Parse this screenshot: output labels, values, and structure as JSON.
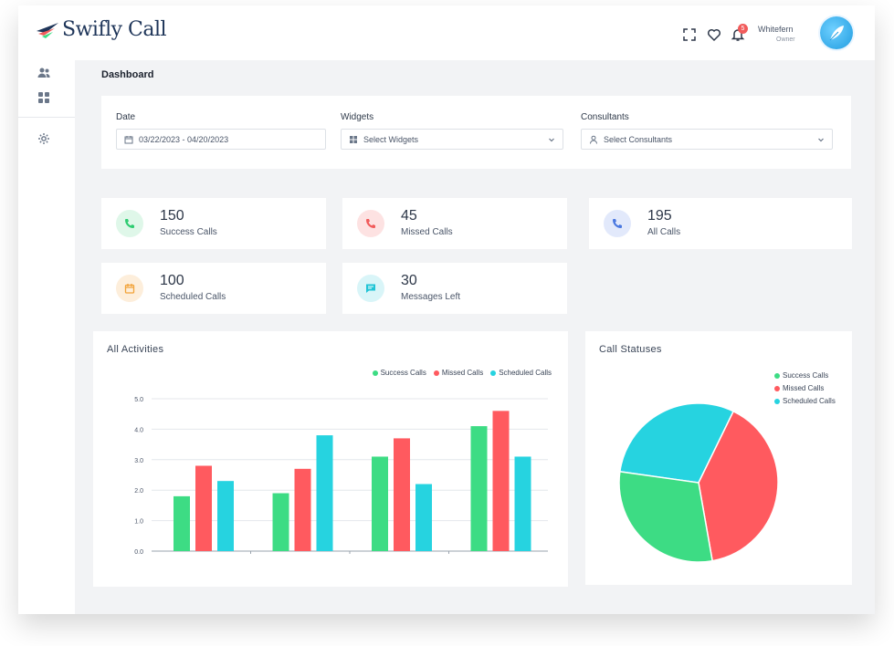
{
  "app": {
    "brand": "Swifly Call"
  },
  "user": {
    "name": "Whitefern",
    "role": "Owner",
    "notifications": "5"
  },
  "page": {
    "title": "Dashboard"
  },
  "filters": {
    "date_label": "Date",
    "date_value": "03/22/2023 - 04/20/2023",
    "widgets_label": "Widgets",
    "widgets_placeholder": "Select Widgets",
    "consultants_label": "Consultants",
    "consultants_placeholder": "Select Consultants"
  },
  "stats": [
    {
      "value": "150",
      "label": "Success Calls",
      "color": "#2ecc71",
      "bg": "#dff7e9",
      "icon": "phone-icon"
    },
    {
      "value": "45",
      "label": "Missed Calls",
      "color": "#f15b5b",
      "bg": "#fde2e2",
      "icon": "phone-missed-icon"
    },
    {
      "value": "195",
      "label": "All Calls",
      "color": "#4a78e0",
      "bg": "#e2e9fb",
      "icon": "phone-icon"
    },
    {
      "value": "100",
      "label": "Scheduled Calls",
      "color": "#f2a33a",
      "bg": "#fdeedb",
      "icon": "calendar-icon"
    },
    {
      "value": "30",
      "label": "Messages Left",
      "color": "#20c4d6",
      "bg": "#d9f5f8",
      "icon": "message-icon"
    }
  ],
  "colors": {
    "success": "#3ddc84",
    "missed": "#ff5a5f",
    "scheduled": "#26d3e0"
  },
  "activities": {
    "title": "All Activities",
    "chart_data": {
      "type": "bar",
      "categories": [
        "",
        "",
        "",
        ""
      ],
      "series": [
        {
          "name": "Success Calls",
          "values": [
            1.8,
            1.9,
            3.1,
            4.1
          ]
        },
        {
          "name": "Missed Calls",
          "values": [
            2.8,
            2.7,
            3.7,
            4.6
          ]
        },
        {
          "name": "Scheduled Calls",
          "values": [
            2.3,
            3.8,
            2.2,
            3.1
          ]
        }
      ],
      "yticks": [
        "0.0",
        "1.0",
        "2.0",
        "3.0",
        "4.0",
        "5.0"
      ],
      "ylim": [
        0,
        5
      ],
      "grid": true,
      "legend": "top-right"
    }
  },
  "statuses": {
    "title": "Call Statuses",
    "chart_data": {
      "type": "pie",
      "labels": [
        "Success Calls",
        "Missed Calls",
        "Scheduled Calls"
      ],
      "values": [
        30,
        40,
        30
      ],
      "legend": "top-right"
    }
  }
}
